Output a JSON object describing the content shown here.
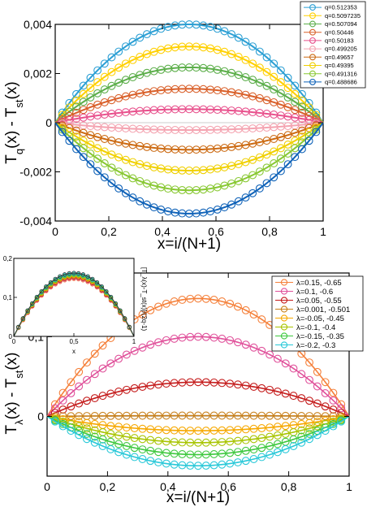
{
  "chart_data": [
    {
      "type": "scatter",
      "xlabel": "x=i/(N+1)",
      "ylabel": "T_q(x) - T_st(x)",
      "xlim": [
        0,
        1
      ],
      "ylim": [
        -0.004,
        0.004
      ],
      "xticks": [
        "0",
        "0,2",
        "0,4",
        "0,6",
        "0,8",
        "1"
      ],
      "yticks": [
        "-0,004",
        "-0,002",
        "0",
        "0,002",
        "0,004"
      ],
      "legend_position": "top-right",
      "series": [
        {
          "name": "q=0.512353",
          "color": "#2b9fd4",
          "peak": 0.004
        },
        {
          "name": "q=0.5097235",
          "color": "#ffd000",
          "peak": 0.0031
        },
        {
          "name": "q=0.507094",
          "color": "#5cae4a",
          "peak": 0.00225
        },
        {
          "name": "q=0.50446",
          "color": "#d9602a",
          "peak": 0.00138
        },
        {
          "name": "q=0.50183",
          "color": "#e8508c",
          "peak": 0.00055
        },
        {
          "name": "q=0.499205",
          "color": "#f4a3b0",
          "peak": -0.0003
        },
        {
          "name": "q=0.49657",
          "color": "#cc6a12",
          "peak": -0.0011
        },
        {
          "name": "q=0.49395",
          "color": "#f0d000",
          "peak": -0.00195
        },
        {
          "name": "q=0.491316",
          "color": "#88c832",
          "peak": -0.00275
        },
        {
          "name": "q=0.488686",
          "color": "#0f62b8",
          "peak": -0.0037
        }
      ]
    },
    {
      "type": "scatter",
      "xlabel": "x=i/(N+1)",
      "ylabel": "T_λ(x) - T_st(x)",
      "xlim": [
        0,
        1
      ],
      "ylim": [
        -0.075,
        0.18
      ],
      "xticks": [
        "0",
        "0,2",
        "0,4",
        "0,6",
        "0,8",
        "1"
      ],
      "yticks": [
        "0",
        "0,1"
      ],
      "legend_position": "top-right",
      "series": [
        {
          "name": "λ=0.15, -0.65",
          "color": "#f5803a",
          "peak": 0.148
        },
        {
          "name": "λ=0.1, -0.6",
          "color": "#e0509a",
          "peak": 0.1
        },
        {
          "name": "λ=0.05, -0.55",
          "color": "#c41a1a",
          "peak": 0.043
        },
        {
          "name": "λ=0.001, -0.501",
          "color": "#c8801a",
          "peak": 0.001
        },
        {
          "name": "λ=-0.05, -0.45",
          "color": "#f6a800",
          "peak": -0.018
        },
        {
          "name": "λ=-0.1, -0.4",
          "color": "#a8c400",
          "peak": -0.033
        },
        {
          "name": "λ=-0.15, -0.35",
          "color": "#3ec83e",
          "peak": -0.048
        },
        {
          "name": "λ=-0.2, -0.3",
          "color": "#28c8d8",
          "peak": -0.062
        }
      ]
    },
    {
      "type": "scatter",
      "inset": true,
      "xlabel": "x",
      "ylabel": "[T_λ(x)-T_st(x)]/(2q-1)",
      "xlim": [
        0,
        1
      ],
      "ylim": [
        0,
        0.2
      ],
      "xticks": [
        "0",
        "0,5",
        "1"
      ],
      "yticks": [
        "0",
        "0,1",
        "0,2"
      ],
      "peak": 0.155,
      "colors": [
        "#f5803a",
        "#e0509a",
        "#c41a1a",
        "#c8801a",
        "#f6a800",
        "#a8c400",
        "#3ec83e",
        "#28c8d8",
        "#333333"
      ]
    }
  ]
}
